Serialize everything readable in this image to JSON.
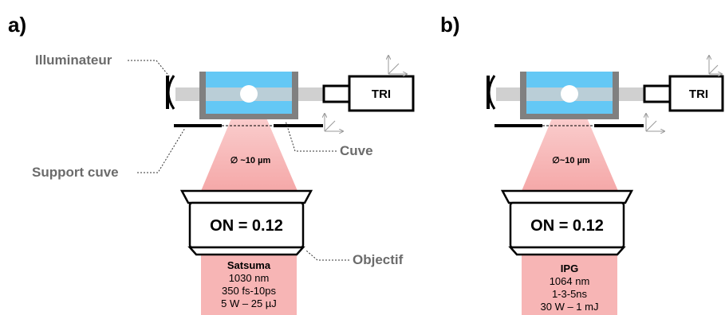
{
  "panel_a": {
    "letter": "a)",
    "labels": {
      "illuminator": "Illuminateur",
      "cuvette": "Cuve",
      "support": "Support cuve",
      "objective": "Objectif"
    },
    "camera": "TRI",
    "spot": "∅  ~10 µm",
    "na": "ON = 0.12",
    "laser": {
      "name": "Satsuma",
      "wavelength": "1030 nm",
      "pulse": "350 fs-10ps",
      "power": "5 W – 25 µJ"
    }
  },
  "panel_b": {
    "letter": "b)",
    "camera": "TRI",
    "spot": "∅~10 µm",
    "na": "ON = 0.12",
    "laser": {
      "name": "IPG",
      "wavelength": "1064 nm",
      "pulse": "1-3-5ns",
      "power": "30 W – 1 mJ"
    }
  },
  "colors": {
    "water": "#64c8f5",
    "laser": "#f7b5b5",
    "wall": "#808080",
    "beam": "#d0d0d0",
    "label": "#6b6b6b"
  }
}
